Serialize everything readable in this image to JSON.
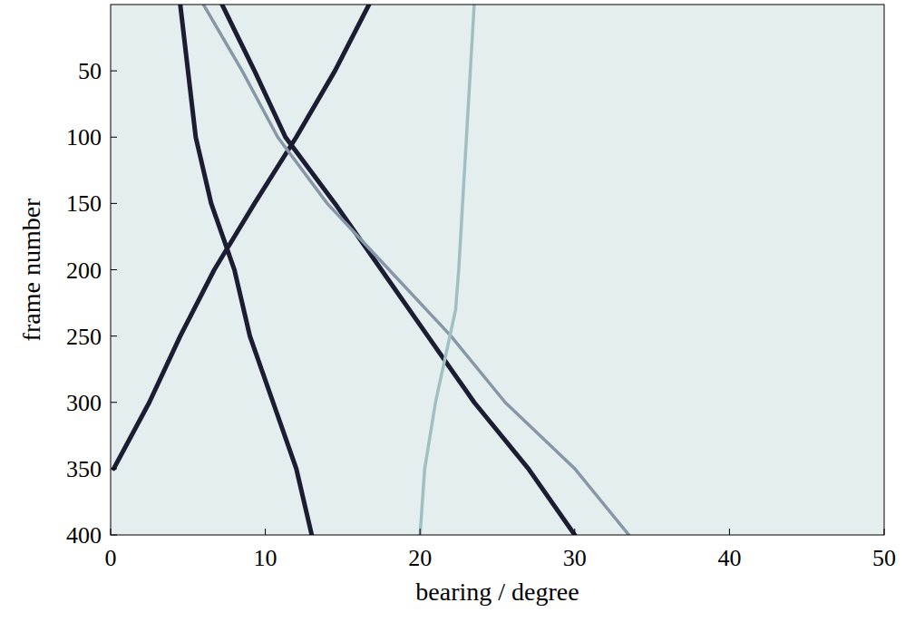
{
  "chart_data": {
    "type": "line",
    "x_label": "bearing / degree",
    "y_label": "frame number",
    "xlim": [
      0,
      50
    ],
    "xticks": [
      0,
      10,
      20,
      30,
      40,
      50
    ],
    "ylim": [
      0,
      400
    ],
    "yticks": [
      50,
      100,
      150,
      200,
      250,
      300,
      350,
      400
    ],
    "grid": false,
    "series": [
      {
        "color": "#1c1d33",
        "x": [
          16.7,
          14.5,
          12.0,
          9.3,
          8.0,
          6.7,
          4.5,
          2.5,
          0.2
        ],
        "values": [
          0,
          50,
          100,
          150,
          175,
          200,
          250,
          300,
          350
        ]
      },
      {
        "color": "#1c1d33",
        "x": [
          7.2,
          9.3,
          11.3,
          14.5,
          17.5,
          20.5,
          23.5,
          27.0,
          30.0
        ],
        "values": [
          0,
          50,
          100,
          150,
          200,
          250,
          300,
          350,
          400
        ]
      },
      {
        "color": "#1c1d33",
        "x": [
          4.5,
          5.0,
          5.5,
          6.5,
          8.0,
          9.0,
          10.5,
          12.0,
          13.0
        ],
        "values": [
          0,
          50,
          100,
          150,
          200,
          250,
          300,
          350,
          400
        ]
      },
      {
        "color": "#8797a8",
        "x": [
          6.0,
          8.5,
          10.8,
          14.0,
          18.0,
          22.0,
          25.5,
          30.0,
          33.5
        ],
        "values": [
          0,
          50,
          100,
          150,
          200,
          250,
          300,
          350,
          400
        ]
      },
      {
        "color": "#9fc0c0",
        "x": [
          23.5,
          23.0,
          22.5,
          22.3,
          21.0,
          20.3,
          20.0
        ],
        "values": [
          0,
          100,
          200,
          230,
          300,
          350,
          400
        ]
      }
    ]
  }
}
